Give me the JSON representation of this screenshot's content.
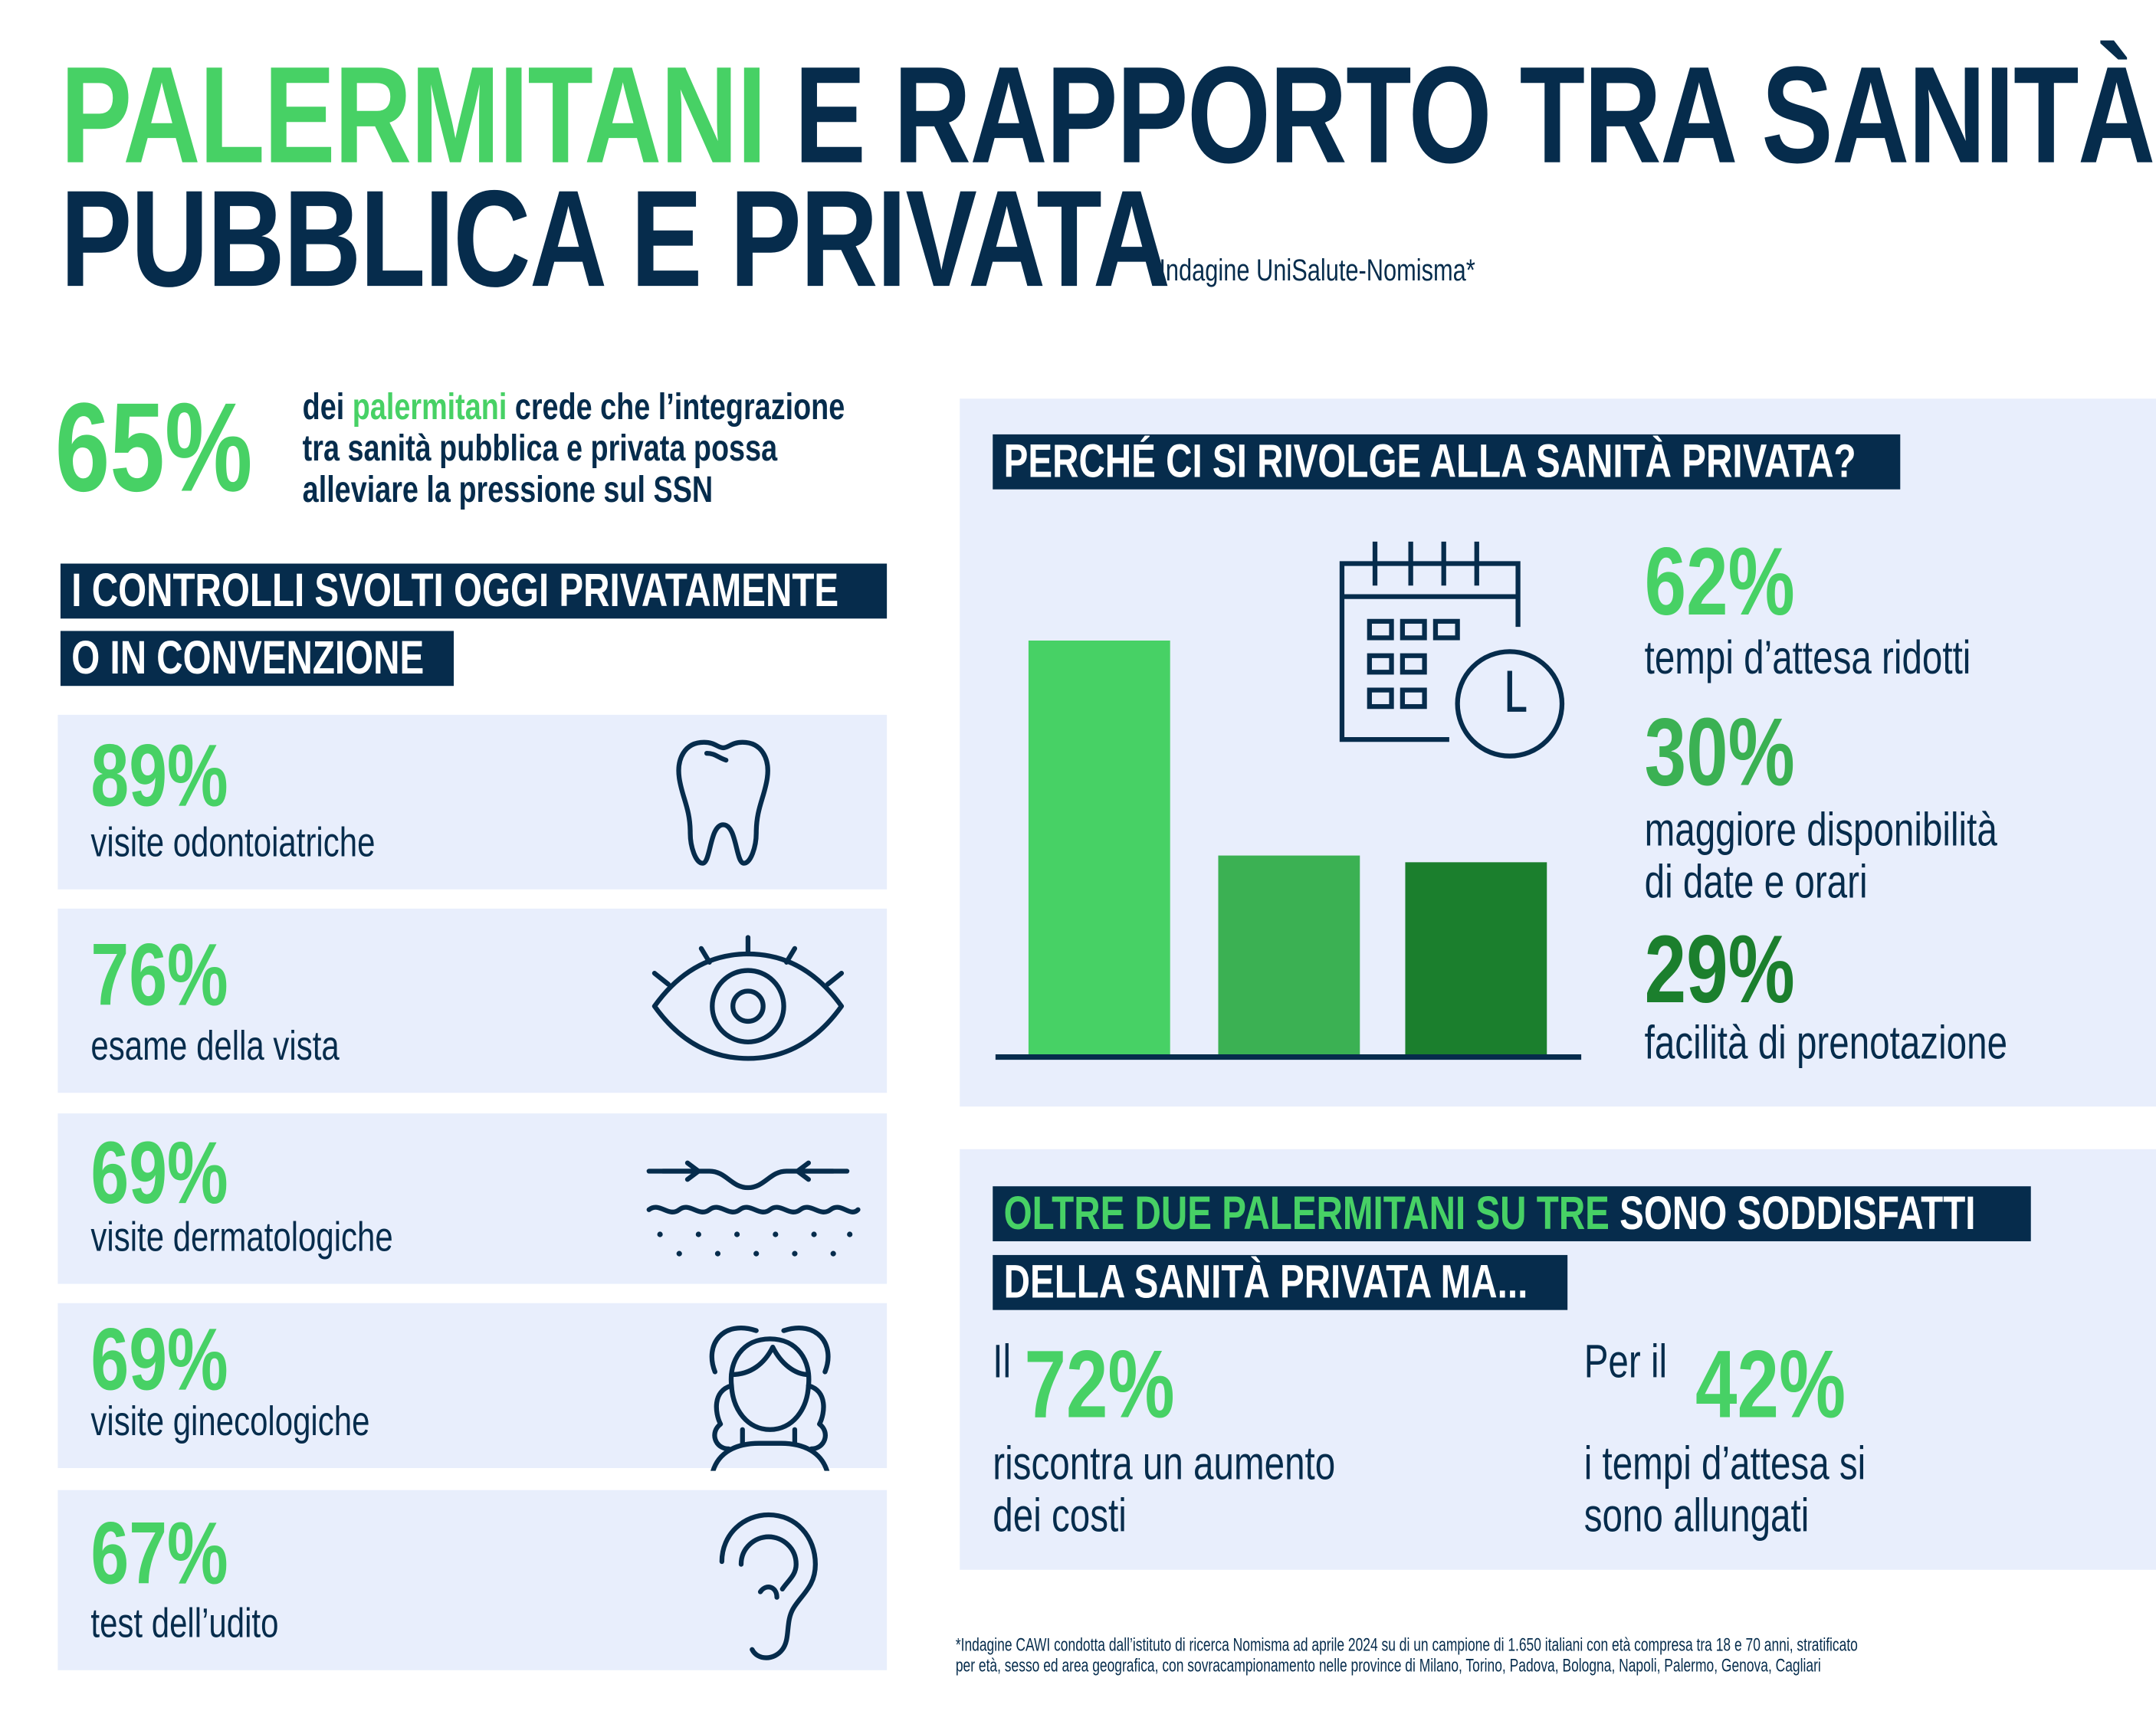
{
  "header": {
    "title_highlight": "PALERMITANI",
    "title_rest_line1": "E RAPPORTO TRA SANITÀ",
    "title_line2": "PUBBLICA E PRIVATA",
    "source": "Indagine UniSalute-Nomisma*"
  },
  "intro": {
    "value": "65%",
    "text_pre": "dei ",
    "text_highlight": "palermitani",
    "text_line1_post": " crede che l’integrazione",
    "text_line2": "tra sanità pubblica e privata possa",
    "text_line3": "alleviare la pressione sul SSN"
  },
  "controls": {
    "heading_line1": "I CONTROLLI SVOLTI OGGI PRIVATAMENTE",
    "heading_line2": "O IN CONVENZIONE",
    "items": [
      {
        "value": "89%",
        "label": "visite odontoiatriche",
        "icon": "tooth-icon"
      },
      {
        "value": "76%",
        "label": "esame della vista",
        "icon": "eye-icon"
      },
      {
        "value": "69%",
        "label": "visite dermatologiche",
        "icon": "skin-icon"
      },
      {
        "value": "69%",
        "label": "visite ginecologiche",
        "icon": "woman-icon"
      },
      {
        "value": "67%",
        "label": "test dell’udito",
        "icon": "ear-icon"
      }
    ]
  },
  "private": {
    "heading": "PERCHÉ CI SI RIVOLGE ALLA SANITÀ PRIVATA?",
    "stats": [
      {
        "value": "62%",
        "line1": "tempi d’attesa ridotti",
        "line2": ""
      },
      {
        "value": "30%",
        "line1": "maggiore disponibilità",
        "line2": "di date e orari"
      },
      {
        "value": "29%",
        "line1": "facilità di prenotazione",
        "line2": ""
      }
    ]
  },
  "chart_data": {
    "type": "bar",
    "categories": [
      "tempi d’attesa ridotti",
      "maggiore disponibilità di date e orari",
      "facilità di prenotazione"
    ],
    "values": [
      62,
      30,
      29
    ],
    "colors": [
      "#47d165",
      "#3bb153",
      "#1b7f2d"
    ],
    "ylim": [
      0,
      62
    ],
    "title": "",
    "xlabel": "",
    "ylabel": ""
  },
  "satisfaction": {
    "heading_highlight": "OLTRE DUE PALERMITANI SU TRE",
    "heading_rest": " SONO SODDISFATTI",
    "heading_line2": "DELLA SANITÀ PRIVATA MA...",
    "left": {
      "prefix": "Il",
      "value": "72%",
      "line1": "riscontra un aumento",
      "line2": "dei costi"
    },
    "right": {
      "prefix": "Per il",
      "value": "42%",
      "line1": "i tempi d’attesa si",
      "line2": "sono allungati"
    }
  },
  "footnote": {
    "line1": "*Indagine CAWI condotta dall’istituto di ricerca Nomisma ad aprile 2024 su di un campione di 1.650 italiani con età compresa tra 18 e 70 anni, stratificato",
    "line2": "per età, sesso ed area geografica, con sovracampionamento nelle province di Milano, Torino, Padova, Bologna, Napoli, Palermo, Genova, Cagliari"
  },
  "colors": {
    "navy": "#062c4c",
    "green": "#47d165",
    "mid_green": "#3bb153",
    "dark_green": "#1b7f2d",
    "panel": "#e8eefc"
  }
}
